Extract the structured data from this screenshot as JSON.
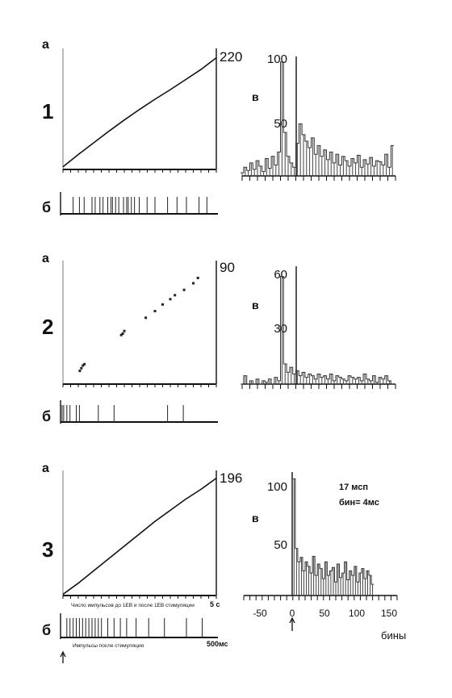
{
  "chart_data": [
    {
      "type": "line",
      "row": "1",
      "panel": "а",
      "max_label": "220",
      "ylim": [
        0,
        220
      ],
      "xlim": [
        0,
        1
      ],
      "x": [
        0,
        0.1,
        0.2,
        0.3,
        0.4,
        0.5,
        0.6,
        0.7,
        0.8,
        0.9,
        1.0
      ],
      "y": [
        5,
        28,
        50,
        72,
        93,
        113,
        132,
        150,
        169,
        188,
        210
      ]
    },
    {
      "type": "scatter",
      "row": "1",
      "panel": "б",
      "xlim": [
        0,
        1
      ],
      "events": [
        0.08,
        0.12,
        0.15,
        0.2,
        0.22,
        0.25,
        0.27,
        0.3,
        0.32,
        0.33,
        0.35,
        0.37,
        0.4,
        0.42,
        0.43,
        0.45,
        0.47,
        0.5,
        0.55,
        0.6,
        0.68,
        0.74,
        0.8,
        0.88,
        0.93
      ]
    },
    {
      "type": "bar",
      "row": "1",
      "panel": "в",
      "xlim": [
        -50,
        150
      ],
      "ylim": [
        0,
        110
      ],
      "yticks": [
        "100",
        "50"
      ],
      "x": [
        -50,
        -46,
        -42,
        -38,
        -34,
        -30,
        -26,
        -22,
        -18,
        -14,
        -10,
        -6,
        -2,
        2,
        6,
        10,
        14,
        18,
        22,
        26,
        30,
        34,
        38,
        42,
        46,
        50,
        54,
        58,
        62,
        66,
        70,
        74,
        78,
        82,
        86,
        90,
        94,
        98,
        102,
        106,
        110,
        114,
        118,
        122,
        126,
        130,
        134,
        138,
        142,
        146
      ],
      "values": [
        3,
        8,
        5,
        12,
        6,
        14,
        9,
        4,
        16,
        7,
        18,
        10,
        22,
        105,
        40,
        18,
        12,
        8,
        30,
        48,
        38,
        32,
        26,
        35,
        20,
        28,
        18,
        24,
        15,
        22,
        12,
        20,
        10,
        18,
        14,
        9,
        16,
        12,
        19,
        8,
        15,
        11,
        17,
        9,
        14,
        13,
        10,
        20,
        8,
        28
      ]
    },
    {
      "type": "scatter",
      "row": "2",
      "panel": "а",
      "max_label": "90",
      "ylim": [
        0,
        90
      ],
      "xlim": [
        0,
        1
      ],
      "x": [
        0.11,
        0.12,
        0.13,
        0.14,
        0.38,
        0.39,
        0.4,
        0.54,
        0.6,
        0.65,
        0.7,
        0.73,
        0.79,
        0.85,
        0.88
      ],
      "y": [
        10,
        12,
        14,
        15,
        37,
        38,
        40,
        50,
        55,
        60,
        64,
        67,
        71,
        76,
        80
      ]
    },
    {
      "type": "scatter",
      "row": "2",
      "panel": "б",
      "xlim": [
        0,
        1
      ],
      "events": [
        0.01,
        0.02,
        0.04,
        0.06,
        0.1,
        0.12,
        0.24,
        0.34,
        0.68,
        0.78
      ]
    },
    {
      "type": "bar",
      "row": "2",
      "panel": "в",
      "xlim": [
        -50,
        150
      ],
      "ylim": [
        0,
        70
      ],
      "yticks": [
        "60",
        "30"
      ],
      "x": [
        -50,
        -46,
        -42,
        -38,
        -34,
        -30,
        -26,
        -22,
        -18,
        -14,
        -10,
        -6,
        -2,
        2,
        6,
        10,
        14,
        18,
        22,
        26,
        30,
        34,
        38,
        42,
        46,
        50,
        54,
        58,
        62,
        66,
        70,
        74,
        78,
        82,
        86,
        90,
        94,
        98,
        102,
        106,
        110,
        114,
        118,
        122,
        126,
        130,
        134,
        138,
        142,
        146
      ],
      "values": [
        0,
        5,
        0,
        2,
        0,
        3,
        0,
        2,
        1,
        3,
        0,
        4,
        2,
        64,
        12,
        7,
        10,
        6,
        8,
        5,
        7,
        4,
        6,
        5,
        3,
        6,
        4,
        5,
        3,
        6,
        2,
        5,
        4,
        3,
        2,
        5,
        4,
        3,
        4,
        2,
        6,
        3,
        2,
        5,
        1,
        4,
        3,
        5,
        2,
        0
      ]
    },
    {
      "type": "line",
      "row": "3",
      "panel": "а",
      "max_label": "196",
      "xlabel": "Число импульсов до 1ЕВ и после 1ЕВ стимуляции",
      "xtick_end": "5 с",
      "ylim": [
        0,
        196
      ],
      "xlim": [
        0,
        1
      ],
      "x": [
        0,
        0.1,
        0.2,
        0.3,
        0.4,
        0.5,
        0.6,
        0.7,
        0.8,
        0.9,
        1.0
      ],
      "y": [
        2,
        20,
        40,
        60,
        80,
        100,
        120,
        138,
        156,
        172,
        190
      ]
    },
    {
      "type": "scatter",
      "row": "3",
      "panel": "б",
      "xlabel": "Импульсы после стимуляции",
      "xtick_end": "500мс",
      "xlim": [
        0,
        1
      ],
      "events": [
        0.04,
        0.06,
        0.08,
        0.1,
        0.12,
        0.14,
        0.16,
        0.18,
        0.2,
        0.22,
        0.24,
        0.26,
        0.3,
        0.34,
        0.38,
        0.42,
        0.48,
        0.56,
        0.66,
        0.8,
        0.9
      ]
    },
    {
      "type": "bar",
      "row": "3",
      "panel": "в",
      "xlim": [
        -80,
        170
      ],
      "ylim": [
        0,
        110
      ],
      "yticks": [
        "100",
        "50"
      ],
      "xticks": [
        "-50",
        "0",
        "50",
        "100",
        "150"
      ],
      "xlabel": "бины",
      "annotation": [
        "17 мсп",
        "бин= 4мс"
      ],
      "x": [
        2,
        6,
        10,
        14,
        18,
        22,
        26,
        30,
        34,
        38,
        42,
        46,
        50,
        54,
        58,
        62,
        66,
        70,
        74,
        78,
        82,
        86,
        90,
        94,
        98,
        102,
        106,
        110,
        114,
        118,
        122,
        126,
        130
      ],
      "values": [
        104,
        42,
        30,
        34,
        22,
        30,
        26,
        20,
        35,
        18,
        28,
        24,
        15,
        30,
        18,
        22,
        25,
        12,
        28,
        16,
        20,
        30,
        14,
        22,
        18,
        26,
        12,
        20,
        24,
        15,
        22,
        18,
        10
      ]
    }
  ]
}
